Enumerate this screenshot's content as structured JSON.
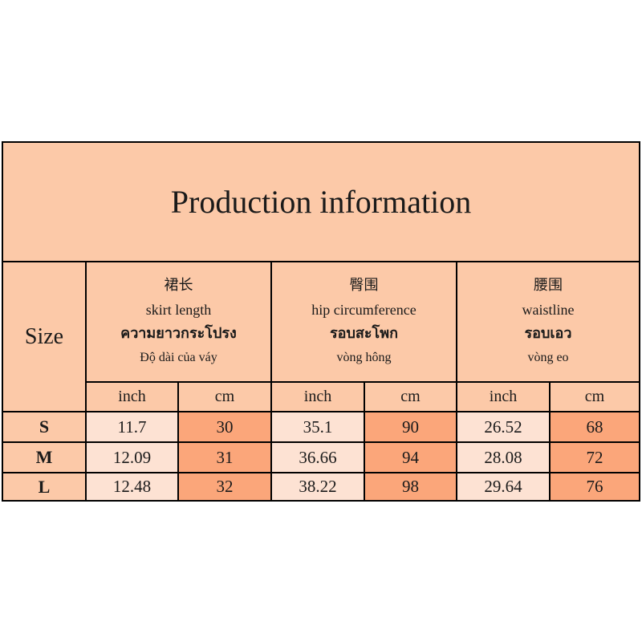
{
  "title": "Production information",
  "header": {
    "size_label": "Size",
    "columns": [
      {
        "zh": "裙长",
        "en": "skirt length",
        "th": "ความยาวกระโปรง",
        "vi": "Độ dài của váy",
        "units": [
          "inch",
          "cm"
        ]
      },
      {
        "zh": "臀围",
        "en": "hip circumference",
        "th": "รอบสะโพก",
        "vi": "vòng hông",
        "units": [
          "inch",
          "cm"
        ]
      },
      {
        "zh": "腰围",
        "en": "waistline",
        "th": "รอบเอว",
        "vi": "vòng eo",
        "units": [
          "inch",
          "cm"
        ]
      }
    ]
  },
  "rows": [
    {
      "size": "S",
      "values": [
        11.7,
        30,
        35.1,
        90,
        26.52,
        68
      ]
    },
    {
      "size": "M",
      "values": [
        12.09,
        31,
        36.66,
        94,
        28.08,
        72
      ]
    },
    {
      "size": "L",
      "values": [
        12.48,
        32,
        38.22,
        98,
        29.64,
        76
      ]
    }
  ]
}
